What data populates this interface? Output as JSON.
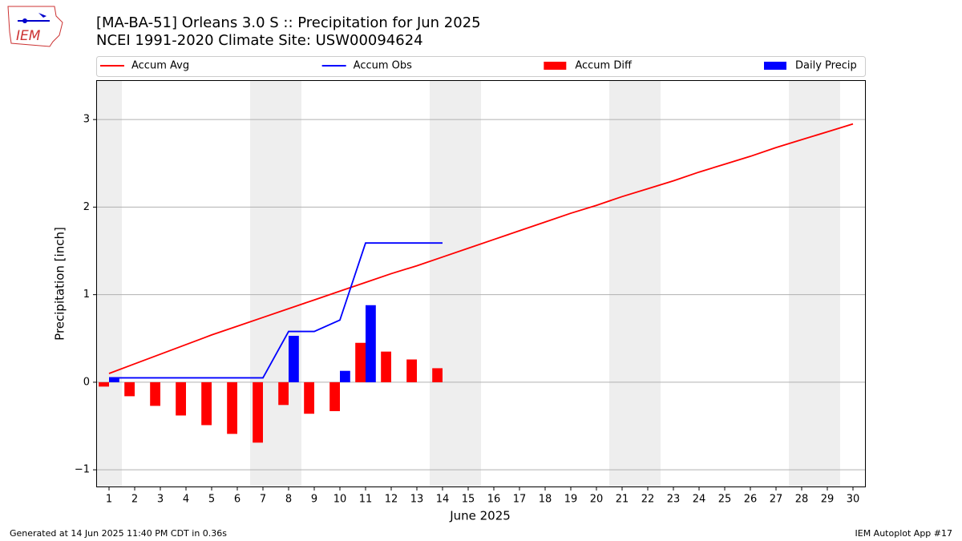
{
  "logo_text": "IEM",
  "footer_left": "Generated at 14 Jun 2025 11:40 PM CDT in 0.36s",
  "footer_right": "IEM Autoplot App #17",
  "chart_data": {
    "type": "combo",
    "title": "[MA-BA-51] Orleans 3.0 S :: Precipitation for Jun 2025",
    "subtitle": "NCEI 1991-2020 Climate Site: USW00094624",
    "x_label": "June 2025",
    "y_label": "Precipitation [inch]",
    "x": [
      1,
      2,
      3,
      4,
      5,
      6,
      7,
      8,
      9,
      10,
      11,
      12,
      13,
      14,
      15,
      16,
      17,
      18,
      19,
      20,
      21,
      22,
      23,
      24,
      25,
      26,
      27,
      28,
      29,
      30
    ],
    "xlim": [
      0.5,
      30.5
    ],
    "xticks": [
      1,
      2,
      3,
      4,
      5,
      6,
      7,
      8,
      9,
      10,
      11,
      12,
      13,
      14,
      15,
      16,
      17,
      18,
      19,
      20,
      21,
      22,
      23,
      24,
      25,
      26,
      27,
      28,
      29,
      30
    ],
    "ylim": [
      -1.2,
      3.45
    ],
    "yticks": [
      {
        "value": -1,
        "label": "−1"
      },
      0,
      1,
      2,
      3
    ],
    "grid": true,
    "legend": "top",
    "series": [
      {
        "name": "Accum Avg",
        "type": "line",
        "color": "#ff0000",
        "values": [
          0.1,
          0.21,
          0.32,
          0.43,
          0.54,
          0.64,
          0.74,
          0.84,
          0.94,
          1.04,
          1.14,
          1.24,
          1.33,
          1.43,
          1.53,
          1.63,
          1.73,
          1.83,
          1.93,
          2.02,
          2.12,
          2.21,
          2.3,
          2.4,
          2.49,
          2.58,
          2.68,
          2.77,
          2.86,
          2.95
        ]
      },
      {
        "name": "Accum Obs",
        "type": "line",
        "color": "#0000ff",
        "values": [
          0.05,
          0.05,
          0.05,
          0.05,
          0.05,
          0.05,
          0.05,
          0.58,
          0.58,
          0.71,
          1.59,
          1.59,
          1.59,
          1.59,
          null,
          null,
          null,
          null,
          null,
          null,
          null,
          null,
          null,
          null,
          null,
          null,
          null,
          null,
          null,
          null
        ]
      },
      {
        "name": "Accum Diff",
        "type": "bar",
        "color": "#ff0000",
        "values": [
          -0.05,
          -0.16,
          -0.27,
          -0.38,
          -0.49,
          -0.59,
          -0.69,
          -0.26,
          -0.36,
          -0.33,
          0.45,
          0.35,
          0.26,
          0.16,
          null,
          null,
          null,
          null,
          null,
          null,
          null,
          null,
          null,
          null,
          null,
          null,
          null,
          null,
          null,
          null
        ]
      },
      {
        "name": "Daily Precip",
        "type": "bar",
        "color": "#0000ff",
        "values": [
          0.05,
          0,
          0,
          0,
          0,
          0,
          0,
          0.53,
          0,
          0.13,
          0.88,
          0,
          0,
          0,
          null,
          null,
          null,
          null,
          null,
          null,
          null,
          null,
          null,
          null,
          null,
          null,
          null,
          null,
          null,
          null
        ]
      }
    ]
  }
}
